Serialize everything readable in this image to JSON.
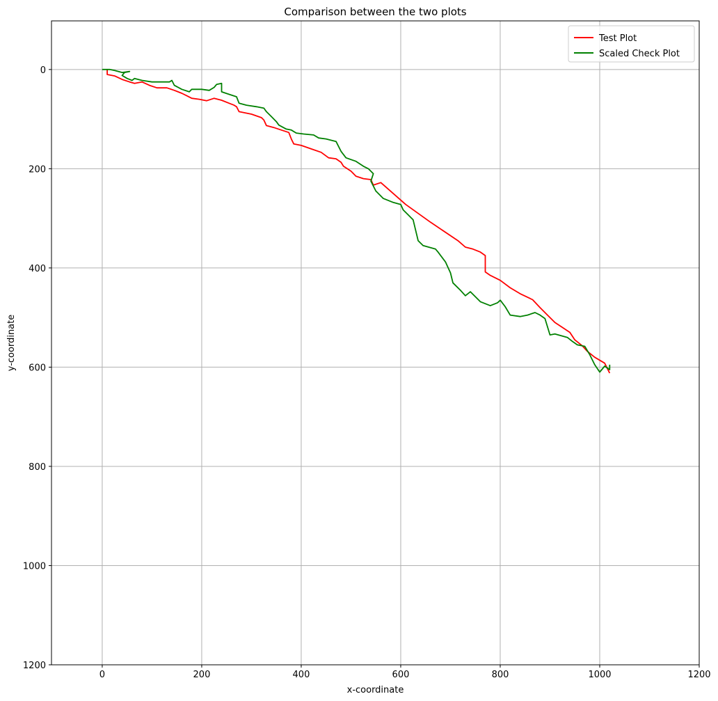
{
  "chart_data": {
    "type": "line",
    "title": "Comparison between the two plots",
    "xlabel": "x-coordinate",
    "ylabel": "y-coordinate",
    "xlim": [
      -102,
      1200
    ],
    "ylim": [
      1200,
      -98
    ],
    "y_inverted": true,
    "xticks": [
      0,
      200,
      400,
      600,
      800,
      1000,
      1200
    ],
    "yticks": [
      0,
      200,
      400,
      600,
      800,
      1000,
      1200
    ],
    "grid": true,
    "legend_position": "top-right",
    "series": [
      {
        "name": "Test Plot",
        "color": "#ff0000",
        "points": [
          [
            10,
            0
          ],
          [
            10,
            10
          ],
          [
            25,
            13
          ],
          [
            40,
            20
          ],
          [
            55,
            25
          ],
          [
            65,
            28
          ],
          [
            80,
            25
          ],
          [
            95,
            32
          ],
          [
            110,
            37
          ],
          [
            130,
            37
          ],
          [
            145,
            42
          ],
          [
            160,
            48
          ],
          [
            170,
            53
          ],
          [
            180,
            58
          ],
          [
            195,
            60
          ],
          [
            210,
            63
          ],
          [
            225,
            58
          ],
          [
            240,
            62
          ],
          [
            255,
            68
          ],
          [
            265,
            72
          ],
          [
            270,
            75
          ],
          [
            275,
            85
          ],
          [
            300,
            90
          ],
          [
            320,
            97
          ],
          [
            325,
            102
          ],
          [
            330,
            113
          ],
          [
            345,
            117
          ],
          [
            360,
            122
          ],
          [
            375,
            127
          ],
          [
            380,
            140
          ],
          [
            385,
            150
          ],
          [
            400,
            153
          ],
          [
            420,
            160
          ],
          [
            440,
            167
          ],
          [
            455,
            178
          ],
          [
            470,
            180
          ],
          [
            480,
            187
          ],
          [
            485,
            195
          ],
          [
            500,
            205
          ],
          [
            510,
            215
          ],
          [
            525,
            220
          ],
          [
            540,
            222
          ],
          [
            545,
            233
          ],
          [
            560,
            228
          ],
          [
            610,
            272
          ],
          [
            660,
            308
          ],
          [
            715,
            345
          ],
          [
            730,
            358
          ],
          [
            745,
            362
          ],
          [
            760,
            368
          ],
          [
            770,
            375
          ],
          [
            770,
            408
          ],
          [
            780,
            415
          ],
          [
            800,
            425
          ],
          [
            820,
            440
          ],
          [
            840,
            452
          ],
          [
            865,
            464
          ],
          [
            880,
            480
          ],
          [
            895,
            495
          ],
          [
            910,
            510
          ],
          [
            925,
            520
          ],
          [
            940,
            530
          ],
          [
            950,
            545
          ],
          [
            965,
            557
          ],
          [
            975,
            568
          ],
          [
            990,
            580
          ],
          [
            1010,
            592
          ],
          [
            1020,
            612
          ]
        ]
      },
      {
        "name": "Scaled Check Plot",
        "color": "#008000",
        "points": [
          [
            0,
            0
          ],
          [
            15,
            0
          ],
          [
            25,
            2
          ],
          [
            40,
            6
          ],
          [
            55,
            4
          ],
          [
            45,
            6
          ],
          [
            40,
            12
          ],
          [
            50,
            18
          ],
          [
            60,
            22
          ],
          [
            65,
            18
          ],
          [
            80,
            22
          ],
          [
            100,
            25
          ],
          [
            135,
            25
          ],
          [
            140,
            22
          ],
          [
            145,
            32
          ],
          [
            160,
            40
          ],
          [
            175,
            45
          ],
          [
            180,
            40
          ],
          [
            200,
            40
          ],
          [
            215,
            42
          ],
          [
            225,
            36
          ],
          [
            230,
            30
          ],
          [
            240,
            28
          ],
          [
            240,
            45
          ],
          [
            255,
            50
          ],
          [
            270,
            55
          ],
          [
            275,
            68
          ],
          [
            290,
            72
          ],
          [
            310,
            75
          ],
          [
            325,
            78
          ],
          [
            330,
            85
          ],
          [
            340,
            95
          ],
          [
            350,
            105
          ],
          [
            355,
            112
          ],
          [
            370,
            120
          ],
          [
            380,
            122
          ],
          [
            390,
            128
          ],
          [
            405,
            130
          ],
          [
            425,
            132
          ],
          [
            435,
            138
          ],
          [
            450,
            140
          ],
          [
            470,
            145
          ],
          [
            480,
            165
          ],
          [
            490,
            178
          ],
          [
            510,
            185
          ],
          [
            525,
            195
          ],
          [
            535,
            200
          ],
          [
            545,
            210
          ],
          [
            540,
            225
          ],
          [
            550,
            245
          ],
          [
            565,
            260
          ],
          [
            585,
            268
          ],
          [
            600,
            272
          ],
          [
            605,
            283
          ],
          [
            615,
            293
          ],
          [
            625,
            303
          ],
          [
            635,
            345
          ],
          [
            645,
            355
          ],
          [
            670,
            362
          ],
          [
            675,
            368
          ],
          [
            690,
            388
          ],
          [
            700,
            410
          ],
          [
            705,
            430
          ],
          [
            720,
            445
          ],
          [
            730,
            456
          ],
          [
            740,
            448
          ],
          [
            760,
            468
          ],
          [
            780,
            476
          ],
          [
            795,
            470
          ],
          [
            800,
            465
          ],
          [
            810,
            478
          ],
          [
            820,
            495
          ],
          [
            840,
            498
          ],
          [
            855,
            495
          ],
          [
            870,
            490
          ],
          [
            880,
            495
          ],
          [
            890,
            502
          ],
          [
            900,
            535
          ],
          [
            910,
            533
          ],
          [
            935,
            540
          ],
          [
            945,
            548
          ],
          [
            955,
            555
          ],
          [
            970,
            558
          ],
          [
            980,
            575
          ],
          [
            990,
            595
          ],
          [
            1000,
            610
          ],
          [
            1010,
            598
          ],
          [
            1020,
            605
          ],
          [
            1020,
            595
          ]
        ]
      }
    ]
  }
}
